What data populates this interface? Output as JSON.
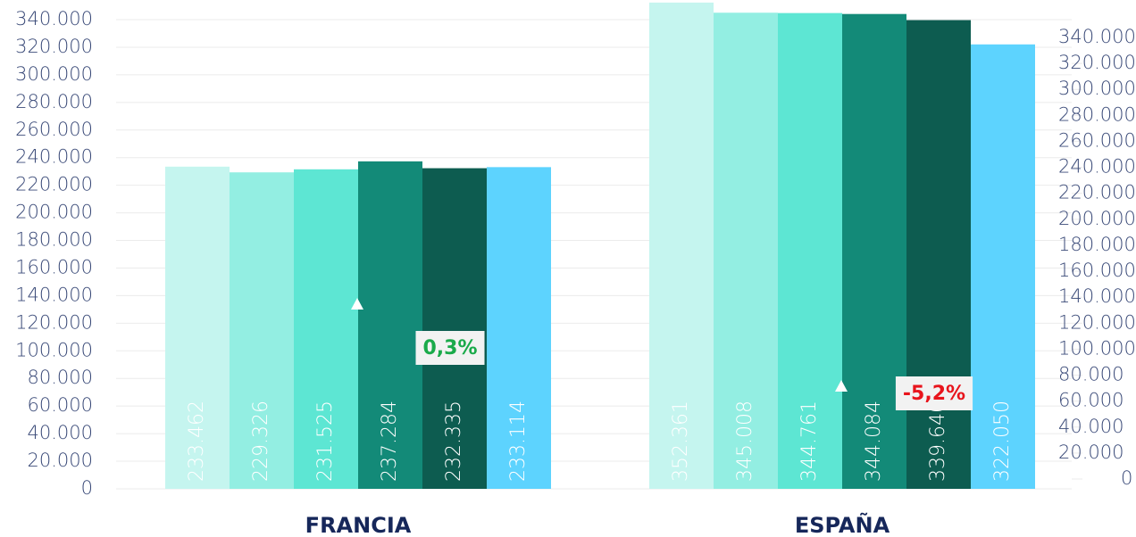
{
  "chart_data": {
    "type": "bar",
    "categories": [
      "FRANCIA",
      "ESPAÑA"
    ],
    "series": [
      {
        "color": "#c5f5ef",
        "values": [
          233462,
          352361
        ],
        "value_labels": [
          "233.462",
          "352.361"
        ]
      },
      {
        "color": "#93eee2",
        "values": [
          229326,
          345008
        ],
        "value_labels": [
          "229.326",
          "345.008"
        ]
      },
      {
        "color": "#5de6d3",
        "values": [
          231525,
          344761
        ],
        "value_labels": [
          "231.525",
          "344.761"
        ]
      },
      {
        "color": "#138a78",
        "values": [
          237284,
          344084
        ],
        "value_labels": [
          "237.284",
          "344.084"
        ]
      },
      {
        "color": "#0d5c50",
        "values": [
          232335,
          339640
        ],
        "value_labels": [
          "232.335",
          "339.640"
        ]
      },
      {
        "color": "#5dd3fe",
        "values": [
          233114,
          322050
        ],
        "value_labels": [
          "233.114",
          "322.050"
        ]
      }
    ],
    "ylim": [
      0,
      340000
    ],
    "yticks": [
      0,
      {
        "value": 20000,
        "label": "20.000"
      },
      {
        "value": 40000,
        "label": "40.000"
      },
      {
        "value": 60000,
        "label": "60.000"
      },
      {
        "value": 80000,
        "label": "80.000"
      },
      {
        "value": 100000,
        "label": "100.000"
      },
      {
        "value": 120000,
        "label": "120.000"
      },
      {
        "value": 140000,
        "label": "140.000"
      },
      {
        "value": 160000,
        "label": "160.000"
      },
      {
        "value": 180000,
        "label": "180.000"
      },
      {
        "value": 200000,
        "label": "200.000"
      },
      {
        "value": 220000,
        "label": "220.000"
      },
      {
        "value": 240000,
        "label": "240.000"
      },
      {
        "value": 260000,
        "label": "260.000"
      },
      {
        "value": 280000,
        "label": "280.000"
      },
      {
        "value": 300000,
        "label": "300.000"
      },
      {
        "value": 320000,
        "label": "320.000"
      },
      {
        "value": 340000,
        "label": "340.000"
      }
    ],
    "y2lim": [
      0,
      340000
    ],
    "y2ticks": [
      0,
      {
        "value": 20000,
        "label": "20.000"
      },
      {
        "value": 40000,
        "label": "40.000"
      },
      {
        "value": 60000,
        "label": "60.000"
      },
      {
        "value": 80000,
        "label": "80.000"
      },
      {
        "value": 100000,
        "label": "100.000"
      },
      {
        "value": 120000,
        "label": "120.000"
      },
      {
        "value": 140000,
        "label": "140.000"
      },
      {
        "value": 160000,
        "label": "160.000"
      },
      {
        "value": 180000,
        "label": "180.000"
      },
      {
        "value": 200000,
        "label": "200.000"
      },
      {
        "value": 220000,
        "label": "220.000"
      },
      {
        "value": 240000,
        "label": "240.000"
      },
      {
        "value": 260000,
        "label": "260.000"
      },
      {
        "value": 280000,
        "label": "280.000"
      },
      {
        "value": 300000,
        "label": "300.000"
      },
      {
        "value": 320000,
        "label": "320.000"
      },
      {
        "value": 340000,
        "label": "340.000"
      }
    ],
    "grid": true,
    "annotations": [
      {
        "text": "0,3%",
        "color": "#1aaa4a"
      },
      {
        "text": "-5,2%",
        "color": "#e8141c"
      }
    ]
  }
}
